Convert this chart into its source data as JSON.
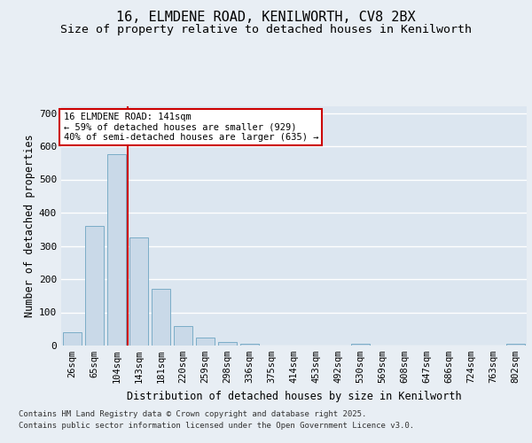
{
  "title_line1": "16, ELMDENE ROAD, KENILWORTH, CV8 2BX",
  "title_line2": "Size of property relative to detached houses in Kenilworth",
  "xlabel": "Distribution of detached houses by size in Kenilworth",
  "ylabel": "Number of detached properties",
  "categories": [
    "26sqm",
    "65sqm",
    "104sqm",
    "143sqm",
    "181sqm",
    "220sqm",
    "259sqm",
    "298sqm",
    "336sqm",
    "375sqm",
    "414sqm",
    "453sqm",
    "492sqm",
    "530sqm",
    "569sqm",
    "608sqm",
    "647sqm",
    "686sqm",
    "724sqm",
    "763sqm",
    "802sqm"
  ],
  "values": [
    40,
    360,
    575,
    325,
    170,
    58,
    25,
    10,
    5,
    0,
    0,
    0,
    0,
    5,
    0,
    0,
    0,
    0,
    0,
    0,
    5
  ],
  "bar_color": "#c9d9e8",
  "bar_edge_color": "#7badc7",
  "vline_color": "#cc0000",
  "vline_x_index": 3,
  "annotation_line1": "16 ELMDENE ROAD: 141sqm",
  "annotation_line2": "← 59% of detached houses are smaller (929)",
  "annotation_line3": "40% of semi-detached houses are larger (635) →",
  "ylim_max": 720,
  "yticks": [
    0,
    100,
    200,
    300,
    400,
    500,
    600,
    700
  ],
  "background_color": "#e8eef4",
  "plot_bg_color": "#dce6f0",
  "grid_color": "#ffffff",
  "footer1": "Contains HM Land Registry data © Crown copyright and database right 2025.",
  "footer2": "Contains public sector information licensed under the Open Government Licence v3.0."
}
